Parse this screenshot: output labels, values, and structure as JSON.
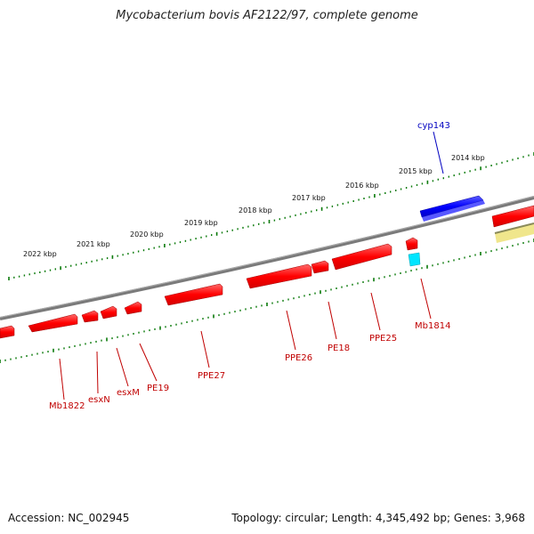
{
  "title": "Mycobacterium bovis AF2122/97, complete genome",
  "footer": {
    "accession": "Accession: NC_002945",
    "summary": "Topology: circular; Length: 4,345,492 bp; Genes: 3,968"
  },
  "colors": {
    "forward_gene": "#ff0000",
    "reverse_gene": "#ff0000",
    "highlight_gene": "#0000ff",
    "cyan_gene": "#00e5ff",
    "yellow_feature": "#f0e68c",
    "backbone": "#808080",
    "ticks": "#0a7a0a",
    "label_red": "#c00000",
    "label_blue": "#0000c0"
  },
  "kbp_labels": [
    "2014 kbp",
    "2015 kbp",
    "2016 kbp",
    "2017 kbp",
    "2018 kbp",
    "2019 kbp",
    "2020 kbp",
    "2021 kbp",
    "2022 kbp"
  ],
  "gene_labels": {
    "top": [
      {
        "name": "cyp143",
        "color": "blue"
      }
    ],
    "bottom": [
      {
        "name": "Mb1814"
      },
      {
        "name": "PPE25"
      },
      {
        "name": "PE18"
      },
      {
        "name": "PPE26"
      },
      {
        "name": "PPE27"
      },
      {
        "name": "PE19"
      },
      {
        "name": "esxM"
      },
      {
        "name": "esxN"
      },
      {
        "name": "Mb1822"
      }
    ]
  }
}
